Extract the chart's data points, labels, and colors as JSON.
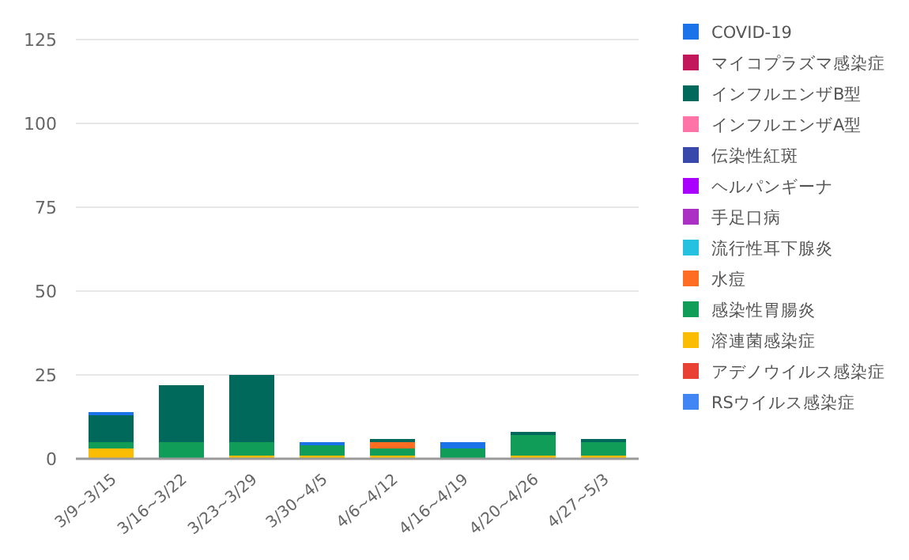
{
  "chart_data": {
    "type": "bar",
    "stacked": true,
    "grid": "y",
    "legend": "right",
    "categories": [
      "3/9~3/15",
      "3/16~3/22",
      "3/23~3/29",
      "3/30~4/5",
      "4/6~4/12",
      "4/16~4/19",
      "4/20~4/26",
      "4/27~5/3"
    ],
    "ylim": [
      0,
      125
    ],
    "yticks": [
      0,
      25,
      50,
      75,
      100,
      125
    ],
    "series": [
      {
        "name": "RSウイルス感染症",
        "color": "#4285f4",
        "values": [
          0,
          0,
          0,
          0,
          0,
          0,
          0,
          0
        ]
      },
      {
        "name": "アデノウイルス感染症",
        "color": "#e94235",
        "values": [
          0,
          0,
          0,
          0,
          0,
          0,
          0,
          0
        ]
      },
      {
        "name": "溶連菌感染症",
        "color": "#fbbc04",
        "values": [
          3,
          0,
          1,
          1,
          1,
          0,
          1,
          1
        ]
      },
      {
        "name": "感染性胃腸炎",
        "color": "#0f9d58",
        "values": [
          2,
          5,
          4,
          3,
          2,
          3,
          6,
          4
        ]
      },
      {
        "name": "水痘",
        "color": "#ff6d22",
        "values": [
          0,
          0,
          0,
          0,
          2,
          0,
          0,
          0
        ]
      },
      {
        "name": "流行性耳下腺炎",
        "color": "#24c1e0",
        "values": [
          0,
          0,
          0,
          0,
          0,
          0,
          0,
          0
        ]
      },
      {
        "name": "手足口病",
        "color": "#ab30c4",
        "values": [
          0,
          0,
          0,
          0,
          0,
          0,
          0,
          0
        ]
      },
      {
        "name": "ヘルパンギーナ",
        "color": "#aa00ff",
        "values": [
          0,
          0,
          0,
          0,
          0,
          0,
          0,
          0
        ]
      },
      {
        "name": "伝染性紅斑",
        "color": "#3949ab",
        "values": [
          0,
          0,
          0,
          0,
          0,
          0,
          0,
          0
        ]
      },
      {
        "name": "インフルエンザA型",
        "color": "#ff73a6",
        "values": [
          0,
          0,
          0,
          0,
          0,
          0,
          0,
          0
        ]
      },
      {
        "name": "インフルエンザB型",
        "color": "#00695c",
        "values": [
          8,
          17,
          20,
          0,
          1,
          0,
          1,
          1
        ]
      },
      {
        "name": "マイコプラズマ感染症",
        "color": "#c2185b",
        "values": [
          0,
          0,
          0,
          0,
          0,
          0,
          0,
          0
        ]
      },
      {
        "name": "COVID-19",
        "color": "#1a73e8",
        "values": [
          1,
          0,
          0,
          1,
          0,
          2,
          0,
          0
        ]
      }
    ]
  }
}
